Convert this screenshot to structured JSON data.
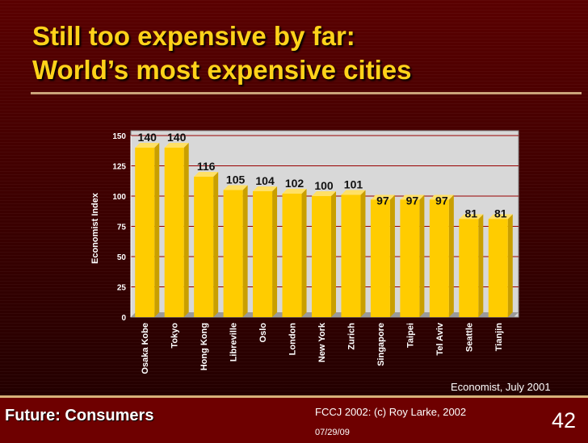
{
  "slide": {
    "title_line1": "Still too expensive by far:",
    "title_line2": "World’s most expensive cities",
    "source": "Economist, July 2001",
    "footer_left": "Future: Consumers",
    "footer_center": "FCCJ 2002: (c) Roy Larke, 2002",
    "date": "07/29/09",
    "page_number": "42",
    "colors": {
      "title": "#ffd21a",
      "background": "#4a0000",
      "footer": "#6e0000",
      "bar": "#ffcc00",
      "bar_side": "#c99f00",
      "plot_background": "#d8d8d8",
      "gridline": "#990000"
    }
  },
  "chart_data": {
    "type": "bar",
    "categories": [
      "Osaka Kobe",
      "Tokyo",
      "Hong Kong",
      "Libreville",
      "Oslo",
      "London",
      "New York",
      "Zurich",
      "Singapore",
      "Taipei",
      "Tel Aviv",
      "Seattle",
      "Tianjin"
    ],
    "values": [
      140,
      140,
      116,
      105,
      104,
      102,
      100,
      101,
      97,
      97,
      97,
      81,
      81
    ],
    "data_labels": [
      "140",
      "140",
      "116",
      "105",
      "104",
      "102",
      "100",
      "101",
      "97",
      "97",
      "97",
      "81",
      "81"
    ],
    "title": "",
    "xlabel": "",
    "ylabel": "Economist Index",
    "ylim": [
      0,
      150
    ],
    "yticks": [
      0,
      25,
      50,
      75,
      100,
      125,
      150
    ],
    "ytick_labels": [
      "0",
      "25",
      "50",
      "75",
      "100",
      "125",
      "150"
    ],
    "grid": true,
    "legend": "none"
  }
}
